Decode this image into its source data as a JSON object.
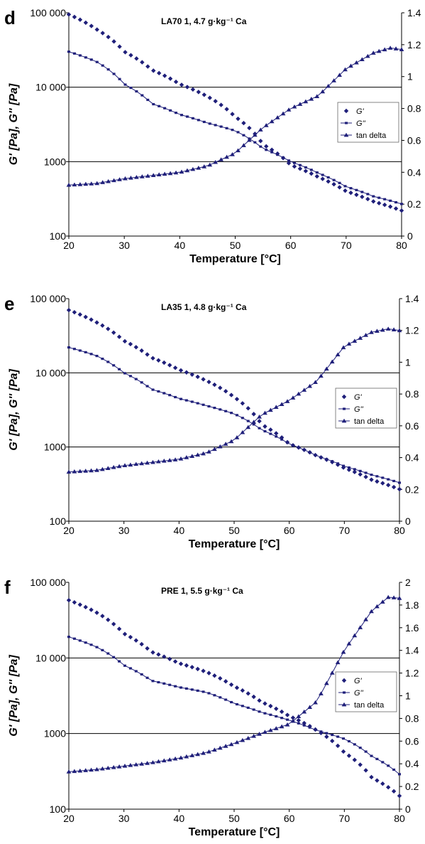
{
  "colors": {
    "series": "#1f1f7a",
    "axis": "#000000",
    "grid": "#000000",
    "legend_border": "#666666"
  },
  "chart_data": [
    {
      "type": "line",
      "panel_letter": "d",
      "title": "LA70 1, 4.7 g·kg⁻¹ Ca",
      "xlabel": "Temperature [°C]",
      "ylabel": "G' [Pa], G'' [Pa]",
      "xlim": [
        20,
        80
      ],
      "ylim": [
        100,
        100000
      ],
      "y_scale": "log",
      "y2lim": [
        0,
        1.4
      ],
      "x_ticks": [
        "20",
        "30",
        "40",
        "50",
        "60",
        "70",
        "80"
      ],
      "y_ticks": [
        "100",
        "1000",
        "10 000",
        "100 000"
      ],
      "y2_ticks": [
        "0",
        "0.2",
        "0.4",
        "0.6",
        "0.8",
        "1",
        "1.2",
        "1.4"
      ],
      "gridlines": "horizontal at 1000 and 10 000",
      "legend_position": "right",
      "series": [
        {
          "name": "G'",
          "marker": "diamond",
          "axis": "left",
          "x": [
            20,
            25,
            30,
            35,
            40,
            45,
            50,
            55,
            60,
            65,
            70,
            75,
            80
          ],
          "y": [
            95000,
            60000,
            30000,
            17000,
            11000,
            7500,
            4000,
            1700,
            900,
            620,
            400,
            290,
            220
          ]
        },
        {
          "name": "G''",
          "marker": "square",
          "axis": "left",
          "x": [
            20,
            25,
            30,
            35,
            40,
            45,
            50,
            55,
            60,
            65,
            70,
            75,
            80
          ],
          "y": [
            30000,
            22000,
            11000,
            6000,
            4300,
            3300,
            2600,
            1500,
            1000,
            700,
            460,
            340,
            270
          ]
        },
        {
          "name": "tan delta",
          "marker": "triangle",
          "axis": "right",
          "x": [
            20,
            25,
            30,
            35,
            40,
            45,
            50,
            55,
            60,
            65,
            70,
            75,
            78,
            80
          ],
          "y": [
            0.32,
            0.33,
            0.36,
            0.38,
            0.4,
            0.44,
            0.52,
            0.68,
            0.8,
            0.88,
            1.05,
            1.15,
            1.18,
            1.17
          ]
        }
      ]
    },
    {
      "type": "line",
      "panel_letter": "e",
      "title": "LA35 1, 4.8 g·kg⁻¹ Ca",
      "xlabel": "Temperature [°C]",
      "ylabel": "G' [Pa], G'' [Pa]",
      "xlim": [
        20,
        80
      ],
      "ylim": [
        100,
        100000
      ],
      "y_scale": "log",
      "y2lim": [
        0,
        1.4
      ],
      "x_ticks": [
        "20",
        "30",
        "40",
        "50",
        "60",
        "70",
        "80"
      ],
      "y_ticks": [
        "100",
        "1000",
        "10 000",
        "100 000"
      ],
      "y2_ticks": [
        "0",
        "0.2",
        "0.4",
        "0.6",
        "0.8",
        "1",
        "1.2",
        "1.4"
      ],
      "gridlines": "horizontal at 1000 and 10 000",
      "legend_position": "right",
      "series": [
        {
          "name": "G'",
          "marker": "diamond",
          "axis": "left",
          "x": [
            20,
            25,
            30,
            35,
            40,
            45,
            50,
            55,
            60,
            65,
            70,
            75,
            80
          ],
          "y": [
            70000,
            48000,
            27000,
            16000,
            11000,
            7800,
            4700,
            2000,
            1100,
            760,
            520,
            360,
            270
          ]
        },
        {
          "name": "G''",
          "marker": "square",
          "axis": "left",
          "x": [
            20,
            25,
            30,
            35,
            40,
            45,
            50,
            55,
            60,
            65,
            70,
            75,
            80
          ],
          "y": [
            22000,
            17000,
            10000,
            6000,
            4500,
            3600,
            2800,
            1700,
            1100,
            760,
            550,
            420,
            330
          ]
        },
        {
          "name": "tan delta",
          "marker": "triangle",
          "axis": "right",
          "x": [
            20,
            25,
            30,
            35,
            40,
            45,
            50,
            55,
            60,
            65,
            70,
            75,
            78,
            80
          ],
          "y": [
            0.31,
            0.32,
            0.35,
            0.37,
            0.39,
            0.43,
            0.51,
            0.67,
            0.76,
            0.88,
            1.1,
            1.19,
            1.21,
            1.2
          ]
        }
      ]
    },
    {
      "type": "line",
      "panel_letter": "f",
      "title": "PRE 1, 5.5 g·kg⁻¹ Ca",
      "xlabel": "Temperature [°C]",
      "ylabel": "G' [Pa], G'' [Pa]",
      "xlim": [
        20,
        80
      ],
      "ylim": [
        100,
        100000
      ],
      "y_scale": "log",
      "y2lim": [
        0,
        2
      ],
      "x_ticks": [
        "20",
        "30",
        "40",
        "50",
        "60",
        "70",
        "80"
      ],
      "y_ticks": [
        "100",
        "1000",
        "10 000",
        "100 000"
      ],
      "y2_ticks": [
        "0",
        "0.2",
        "0.4",
        "0.6",
        "0.8",
        "1",
        "1.2",
        "1.4",
        "1.6",
        "1.8",
        "2"
      ],
      "gridlines": "horizontal at 1000 and 10 000",
      "legend_position": "right",
      "series": [
        {
          "name": "G'",
          "marker": "diamond",
          "axis": "left",
          "x": [
            20,
            25,
            30,
            35,
            40,
            45,
            50,
            55,
            60,
            65,
            70,
            75,
            80
          ],
          "y": [
            58000,
            40000,
            21000,
            12000,
            8500,
            6500,
            4200,
            2600,
            1700,
            1100,
            560,
            260,
            150
          ]
        },
        {
          "name": "G''",
          "marker": "square",
          "axis": "left",
          "x": [
            20,
            25,
            30,
            35,
            40,
            45,
            50,
            55,
            60,
            65,
            70,
            75,
            80
          ],
          "y": [
            19000,
            14000,
            8000,
            5000,
            4100,
            3500,
            2500,
            1900,
            1500,
            1100,
            850,
            500,
            290
          ]
        },
        {
          "name": "tan delta",
          "marker": "triangle",
          "axis": "right",
          "x": [
            20,
            25,
            30,
            35,
            40,
            45,
            50,
            55,
            60,
            65,
            70,
            75,
            78,
            80
          ],
          "y": [
            0.33,
            0.35,
            0.38,
            0.41,
            0.45,
            0.5,
            0.58,
            0.67,
            0.75,
            0.95,
            1.4,
            1.75,
            1.87,
            1.86
          ]
        }
      ]
    }
  ]
}
